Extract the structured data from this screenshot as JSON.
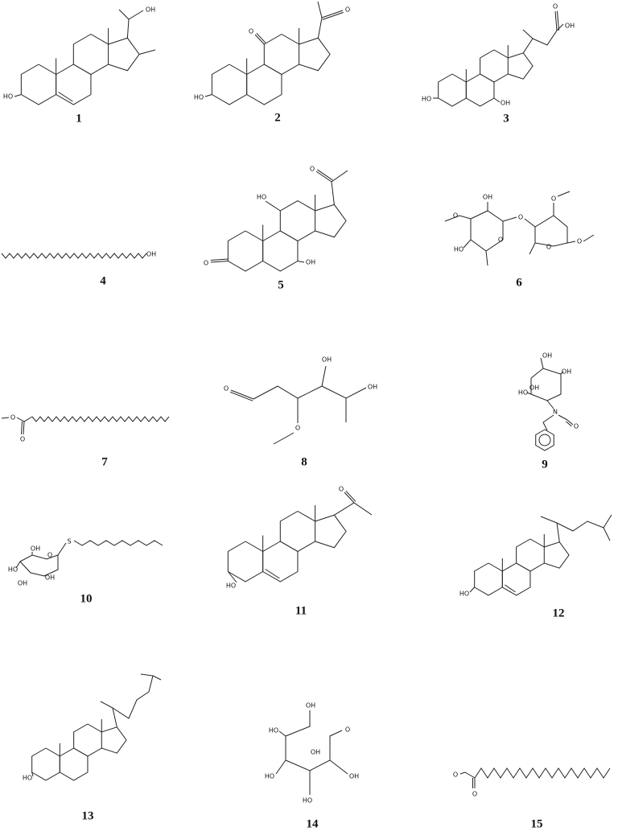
{
  "structures": [
    {
      "number": "1",
      "atoms": [
        "HO",
        "OH"
      ]
    },
    {
      "number": "2",
      "atoms": [
        "HO",
        "O",
        "O"
      ]
    },
    {
      "number": "3",
      "atoms": [
        "HO",
        "OH",
        "O",
        "OH"
      ]
    },
    {
      "number": "4",
      "atoms": [
        "OH"
      ]
    },
    {
      "number": "5",
      "atoms": [
        "O",
        "HO",
        "OH",
        "O"
      ]
    },
    {
      "number": "6",
      "atoms": [
        "OH",
        "O",
        "HO",
        "O",
        "O",
        "O",
        "O",
        "O"
      ]
    },
    {
      "number": "7",
      "atoms": [
        "O",
        "O"
      ]
    },
    {
      "number": "8",
      "atoms": [
        "O",
        "OH",
        "OH",
        "O"
      ]
    },
    {
      "number": "9",
      "atoms": [
        "OH",
        "OH",
        "OH",
        "HO",
        "N",
        "O"
      ]
    },
    {
      "number": "10",
      "atoms": [
        "OH",
        "O",
        "S",
        "HO",
        "OH",
        "OH"
      ]
    },
    {
      "number": "11",
      "atoms": [
        "HO",
        "O"
      ]
    },
    {
      "number": "12",
      "atoms": [
        "HO"
      ]
    },
    {
      "number": "13",
      "atoms": [
        "HO"
      ]
    },
    {
      "number": "14",
      "atoms": [
        "OH",
        "HO",
        "O",
        "HO",
        "OH",
        "HO",
        "OH"
      ]
    },
    {
      "number": "15",
      "atoms": [
        "O",
        "O"
      ]
    }
  ]
}
